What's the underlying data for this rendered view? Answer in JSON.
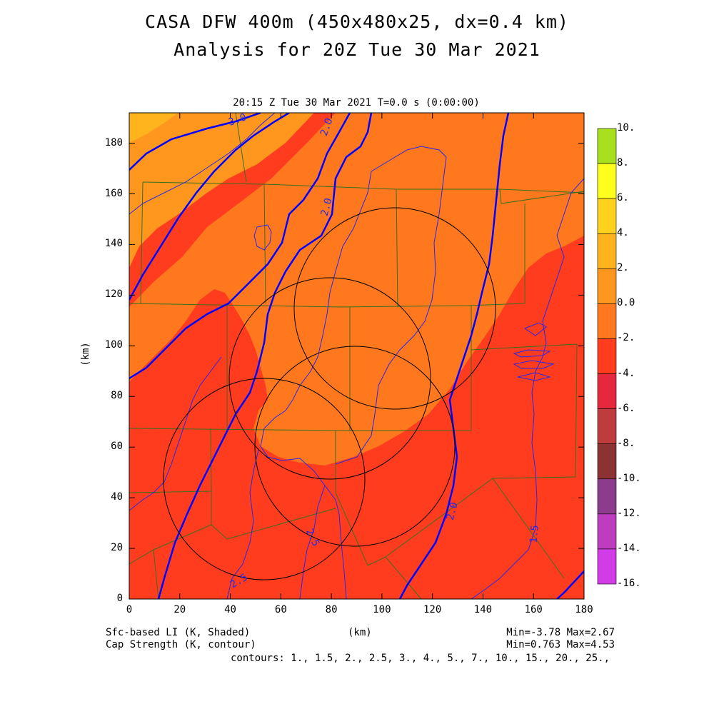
{
  "title": {
    "line1": "CASA DFW 400m (450x480x25, dx=0.4 km)",
    "line2": "Analysis for 20Z Tue 30 Mar 2021"
  },
  "subtitle": "20:15 Z Tue 30 Mar 2021    T=0.0 s (0:00:00)",
  "axes": {
    "x_label": "(km)",
    "y_label": "(km)",
    "x_range": [
      0,
      180
    ],
    "y_range": [
      0,
      192
    ],
    "x_ticks": [
      "0",
      "20",
      "40",
      "60",
      "80",
      "100",
      "120",
      "140",
      "160",
      "180"
    ],
    "y_ticks": [
      "0",
      "20",
      "40",
      "60",
      "80",
      "100",
      "120",
      "140",
      "160",
      "180"
    ]
  },
  "colorbar": {
    "labels": [
      "10.",
      "8.",
      "6.",
      "4.",
      "2.",
      "0.0",
      "-2.",
      "-4.",
      "-6.",
      "-8.",
      "-10.",
      "-12.",
      "-14.",
      "-16."
    ],
    "colors": [
      "#a8e01e",
      "#d2f51e",
      "#ffff1e",
      "#ffd21e",
      "#ffb41e",
      "#ff961e",
      "#ff781e",
      "#ff3c1e",
      "#e6283c",
      "#be3c3c",
      "#8c3232",
      "#8c3c8c",
      "#be3cbe",
      "#d23ce6"
    ]
  },
  "field_colors": {
    "band_2_4": "#ffb41e",
    "band_0_2": "#ff961e",
    "band_m2_0": "#ff781e",
    "band_m4_m2": "#ff3c1e",
    "contour_thick": "#0000ff",
    "contour_thin": "#2828e6",
    "borders": "#3c6e1e"
  },
  "contour_labels": [
    "3.0",
    "2.0",
    "2.0",
    "2.0",
    "1.5",
    "2.5",
    "2.5"
  ],
  "footer": {
    "left1": "Sfc-based LI (K, Shaded)",
    "left2": "Cap Strength (K, contour)",
    "center": "(km)",
    "right1": "Min=-3.78 Max=2.67",
    "right2": "Min=0.763 Max=4.53",
    "contours": "contours: 1., 1.5, 2., 2.5, 3., 4., 5., 7., 10., 15., 20., 25.,"
  }
}
